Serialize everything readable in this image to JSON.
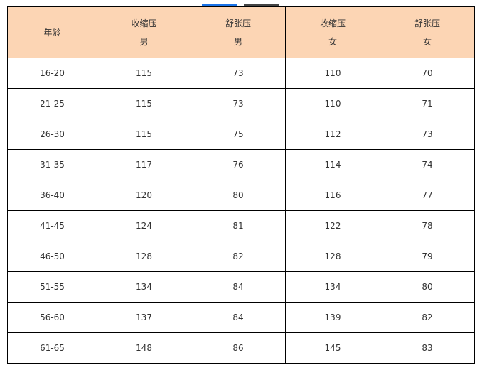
{
  "colors": {
    "header_bg": "#fcd5b4",
    "indicator_active": "#1a73e8",
    "indicator_inactive": "#444444"
  },
  "headers": [
    {
      "line1": "年龄",
      "line2": ""
    },
    {
      "line1": "收缩压",
      "line2": "男"
    },
    {
      "line1": "舒张压",
      "line2": "男"
    },
    {
      "line1": "收缩压",
      "line2": "女"
    },
    {
      "line1": "舒张压",
      "line2": "女"
    }
  ],
  "rows": [
    [
      "16-20",
      "115",
      "73",
      "110",
      "70"
    ],
    [
      "21-25",
      "115",
      "73",
      "110",
      "71"
    ],
    [
      "26-30",
      "115",
      "75",
      "112",
      "73"
    ],
    [
      "31-35",
      "117",
      "76",
      "114",
      "74"
    ],
    [
      "36-40",
      "120",
      "80",
      "116",
      "77"
    ],
    [
      "41-45",
      "124",
      "81",
      "122",
      "78"
    ],
    [
      "46-50",
      "128",
      "82",
      "128",
      "79"
    ],
    [
      "51-55",
      "134",
      "84",
      "134",
      "80"
    ],
    [
      "56-60",
      "137",
      "84",
      "139",
      "82"
    ],
    [
      "61-65",
      "148",
      "86",
      "145",
      "83"
    ]
  ]
}
